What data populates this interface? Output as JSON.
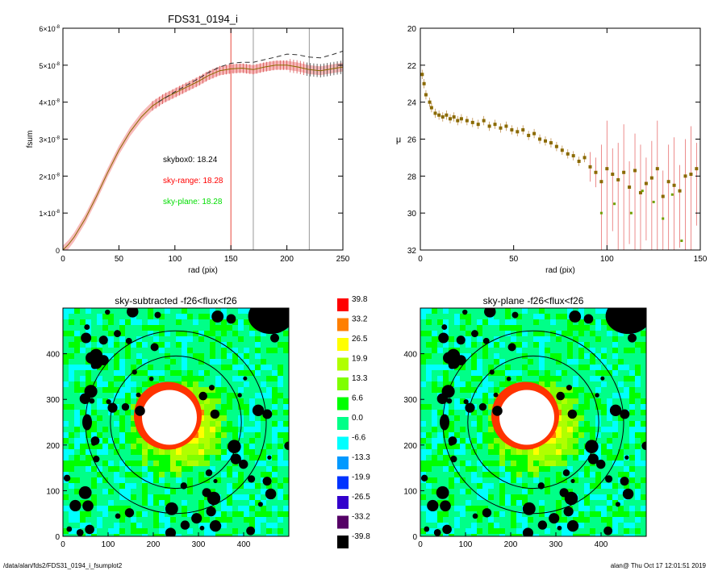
{
  "footer": {
    "path": "/data/alan/fds2/FDS31_0194_i_fsumplot2",
    "stamp": "alan@  Thu Oct 17 12:01:51 2019"
  },
  "chart_data": [
    {
      "type": "line",
      "title": "FDS31_0194_i",
      "xlabel": "rad (pix)",
      "ylabel": "fsum",
      "xlim": [
        0,
        250
      ],
      "ylim": [
        0,
        6e-08
      ],
      "x_ticks": [
        0,
        50,
        100,
        150,
        200,
        250
      ],
      "y_ticks": [
        0,
        1e-08,
        2e-08,
        3e-08,
        4e-08,
        5e-08,
        6e-08
      ],
      "y_tick_labels": [
        {
          "m": "0",
          "e": ""
        },
        {
          "m": "1×10",
          "e": "-8"
        },
        {
          "m": "2×10",
          "e": "-8"
        },
        {
          "m": "3×10",
          "e": "-8"
        },
        {
          "m": "4×10",
          "e": "-8"
        },
        {
          "m": "5×10",
          "e": "-8"
        },
        {
          "m": "6×10",
          "e": "-8"
        }
      ],
      "annotations": [
        {
          "text": "skybox0: 18.24",
          "color": "#000000"
        },
        {
          "text": "sky-range: 18.28",
          "color": "#ff0000"
        },
        {
          "text": "sky-plane: 18.28",
          "color": "#00dd00"
        }
      ],
      "vlines": [
        {
          "x": 150,
          "color": "#e8473c"
        },
        {
          "x": 170,
          "color": "#999999"
        },
        {
          "x": 220,
          "color": "#999999"
        }
      ],
      "series": [
        {
          "style": "solid",
          "color": "#8a6a00",
          "x": [
            0,
            5,
            10,
            20,
            30,
            40,
            50,
            60,
            70,
            80,
            90,
            100,
            110,
            120,
            130,
            140,
            150,
            160,
            170,
            180,
            190,
            200,
            210,
            220,
            230,
            240,
            250
          ],
          "y": [
            0,
            1.5e-09,
            3.5e-09,
            8.5e-09,
            1.45e-08,
            2.1e-08,
            2.7e-08,
            3.2e-08,
            3.6e-08,
            3.9e-08,
            4.1e-08,
            4.25e-08,
            4.4e-08,
            4.55e-08,
            4.72e-08,
            4.85e-08,
            4.9e-08,
            4.92e-08,
            4.88e-08,
            4.95e-08,
            5e-08,
            5e-08,
            4.95e-08,
            4.88e-08,
            4.85e-08,
            4.9e-08,
            4.95e-08
          ]
        },
        {
          "style": "dashed",
          "color": "#333333",
          "x": [
            85,
            100,
            110,
            120,
            130,
            140,
            150,
            160,
            170,
            180,
            190,
            200,
            210,
            220,
            230,
            240,
            250
          ],
          "y": [
            4e-08,
            4.28e-08,
            4.45e-08,
            4.62e-08,
            4.8e-08,
            4.95e-08,
            5.05e-08,
            5.08e-08,
            5.08e-08,
            5.15e-08,
            5.22e-08,
            5.3e-08,
            5.28e-08,
            5.22e-08,
            5.2e-08,
            5.28e-08,
            5.38e-08
          ]
        }
      ],
      "error_band": {
        "color": "#f08080",
        "half_width": 1.2e-09
      }
    },
    {
      "type": "scatter",
      "title": "",
      "xlabel": "rad (pix)",
      "ylabel": "μ",
      "xlim": [
        0,
        150
      ],
      "ylim": [
        32,
        20
      ],
      "x_ticks": [
        0,
        50,
        100,
        150
      ],
      "y_ticks": [
        20,
        22,
        24,
        26,
        28,
        30,
        32
      ],
      "series": [
        {
          "color": "#8a6a00",
          "x": [
            1,
            2,
            3,
            5,
            6,
            8,
            10,
            12,
            14,
            16,
            18,
            20,
            22,
            25,
            28,
            31,
            34,
            37,
            40,
            43,
            46,
            49,
            52,
            55,
            58,
            61,
            64,
            67,
            70,
            73,
            76,
            79,
            82,
            85,
            88,
            91,
            94,
            97,
            100,
            103,
            106,
            109,
            112,
            115,
            118,
            121,
            124,
            127,
            130,
            133,
            136,
            139,
            142,
            145,
            148
          ],
          "y": [
            22.5,
            23.0,
            23.6,
            24.0,
            24.3,
            24.6,
            24.7,
            24.8,
            24.7,
            24.9,
            24.8,
            25.0,
            24.9,
            25.0,
            25.1,
            25.2,
            25.0,
            25.3,
            25.2,
            25.4,
            25.3,
            25.5,
            25.6,
            25.5,
            25.8,
            25.7,
            26.0,
            26.1,
            26.2,
            26.4,
            26.6,
            26.8,
            26.9,
            27.2,
            27.0,
            27.5,
            27.8,
            28.3,
            27.6,
            27.9,
            28.2,
            27.8,
            28.6,
            27.7,
            28.9,
            28.4,
            28.1,
            27.6,
            29.1,
            28.3,
            28.5,
            28.8,
            28.0,
            27.9,
            27.6
          ]
        }
      ],
      "outliers": {
        "color": "#6fa000",
        "x": [
          97,
          104,
          113,
          119,
          125,
          130,
          135,
          140
        ],
        "y": [
          30.0,
          29.5,
          30.0,
          28.8,
          29.4,
          30.3,
          29.0,
          31.5
        ]
      }
    },
    {
      "type": "heatmap",
      "title": "sky-subtracted -f26<flux<f26",
      "xlim": [
        0,
        500
      ],
      "ylim": [
        0,
        500
      ],
      "x_ticks": [
        0,
        100,
        200,
        300,
        400
      ],
      "y_ticks": [
        0,
        100,
        200,
        300,
        400
      ],
      "ellipses": [
        {
          "cx": 250,
          "cy": 250,
          "rx": 200,
          "ry": 200
        },
        {
          "cx": 250,
          "cy": 250,
          "rx": 145,
          "ry": 145
        }
      ]
    },
    {
      "type": "heatmap",
      "title": "sky-plane -f26<flux<f26",
      "xlim": [
        0,
        500
      ],
      "ylim": [
        0,
        500
      ],
      "x_ticks": [
        0,
        100,
        200,
        300,
        400
      ],
      "y_ticks": [
        0,
        100,
        200,
        300,
        400
      ],
      "ellipses": [
        {
          "cx": 250,
          "cy": 250,
          "rx": 200,
          "ry": 200
        },
        {
          "cx": 250,
          "cy": 250,
          "rx": 145,
          "ry": 145
        }
      ]
    },
    {
      "type": "colorbar",
      "levels": [
        {
          "label": "39.8",
          "color": "#ff0000"
        },
        {
          "label": "33.2",
          "color": "#ff7f00"
        },
        {
          "label": "26.5",
          "color": "#ffff00"
        },
        {
          "label": "19.9",
          "color": "#b0ff00"
        },
        {
          "label": "13.3",
          "color": "#7fff00"
        },
        {
          "label": "6.6",
          "color": "#00ff00"
        },
        {
          "label": "0.0",
          "color": "#00ff88"
        },
        {
          "label": "-6.6",
          "color": "#00ffff"
        },
        {
          "label": "-13.3",
          "color": "#0099ff"
        },
        {
          "label": "-19.9",
          "color": "#0033ff"
        },
        {
          "label": "-26.5",
          "color": "#3300cc"
        },
        {
          "label": "-33.2",
          "color": "#550066"
        },
        {
          "label": "-39.8",
          "color": "#000000"
        }
      ]
    }
  ]
}
